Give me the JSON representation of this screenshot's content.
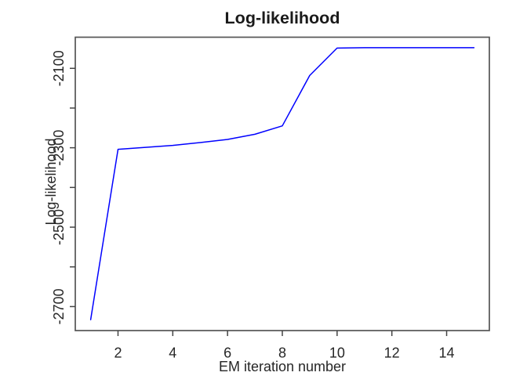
{
  "figure": {
    "title": "Log-likelihood",
    "xlabel": "EM iteration number",
    "ylabel": "Log-likelihood"
  },
  "chart_data": {
    "type": "line",
    "title": "Log-likelihood",
    "xlabel": "EM iteration number",
    "ylabel": "Log-likelihood",
    "x": [
      1,
      2,
      3,
      4,
      5,
      6,
      7,
      8,
      9,
      10,
      11,
      12,
      13,
      14,
      15
    ],
    "y": [
      -2733,
      -2304,
      -2299,
      -2294,
      -2287,
      -2279,
      -2266,
      -2245,
      -2118,
      -2049,
      -2048,
      -2048,
      -2048,
      -2048,
      -2048
    ],
    "xlim": [
      0.44,
      15.56
    ],
    "ylim": [
      -2760.4,
      -2021.6
    ],
    "x_ticks": [
      2,
      4,
      6,
      8,
      10,
      12,
      14
    ],
    "x_tick_labels": [
      "2",
      "4",
      "6",
      "8",
      "10",
      "12",
      "14"
    ],
    "y_ticks": [
      -2700,
      -2600,
      -2500,
      -2400,
      -2300,
      -2200,
      -2100
    ],
    "y_tick_labels": [
      "-2700",
      "",
      "-2500",
      "",
      "-2300",
      "",
      "-2100"
    ],
    "line_color": "#0000ff",
    "axis_color": "#555555",
    "tick_color": "#444444",
    "text_color": "#262626",
    "background": "#ffffff",
    "grid": false
  }
}
